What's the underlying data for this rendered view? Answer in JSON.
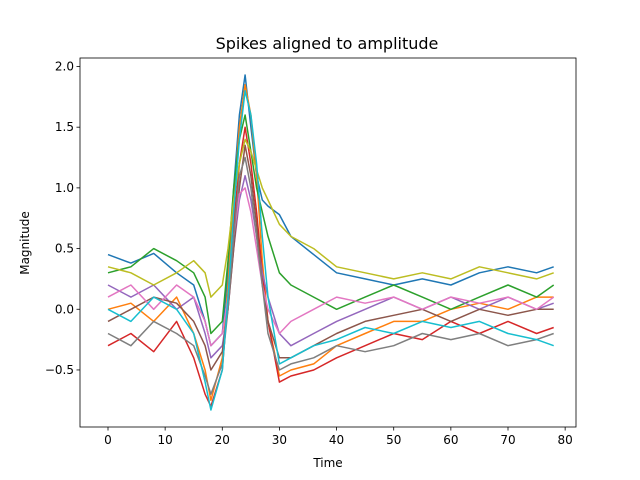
{
  "chart_data": {
    "type": "line",
    "title": "Spikes aligned to amplitude",
    "xlabel": "Time",
    "ylabel": "Magnitude",
    "xlim": [
      -4.9,
      81.9
    ],
    "ylim": [
      -0.97,
      2.07
    ],
    "xticks": [
      0,
      10,
      20,
      30,
      40,
      50,
      60,
      70,
      80
    ],
    "xtick_labels": [
      "0",
      "10",
      "20",
      "30",
      "40",
      "50",
      "60",
      "70",
      "80"
    ],
    "yticks": [
      -0.5,
      0.0,
      0.5,
      1.0,
      1.5,
      2.0
    ],
    "ytick_labels": [
      "−0.5",
      "0.0",
      "0.5",
      "1.0",
      "1.5",
      "2.0"
    ],
    "grid": false,
    "legend": "none",
    "colors": [
      "#1f77b4",
      "#ff7f0e",
      "#2ca02c",
      "#d62728",
      "#9467bd",
      "#8c564b",
      "#e377c2",
      "#7f7f7f",
      "#bcbd22",
      "#17becf"
    ],
    "series": [
      {
        "x": [
          0,
          4,
          8,
          12,
          15,
          17,
          18,
          20,
          21,
          22,
          23,
          24,
          25,
          26,
          27,
          28,
          30,
          32,
          36,
          40,
          45,
          50,
          55,
          60,
          65,
          70,
          75,
          78
        ],
        "values": [
          0.45,
          0.38,
          0.46,
          0.3,
          0.2,
          -0.1,
          -0.3,
          -0.2,
          0.3,
          1.0,
          1.6,
          1.93,
          1.5,
          1.1,
          0.9,
          0.85,
          0.78,
          0.6,
          0.45,
          0.3,
          0.25,
          0.2,
          0.25,
          0.2,
          0.3,
          0.35,
          0.3,
          0.35
        ]
      },
      {
        "x": [
          0,
          4,
          8,
          12,
          15,
          17,
          18,
          20,
          21,
          22,
          23,
          24,
          25,
          26,
          27,
          28,
          30,
          32,
          36,
          40,
          45,
          50,
          55,
          60,
          65,
          70,
          75,
          78
        ],
        "values": [
          0.0,
          0.05,
          -0.1,
          0.1,
          -0.2,
          -0.5,
          -0.75,
          -0.4,
          0.2,
          0.9,
          1.5,
          1.85,
          1.6,
          1.1,
          0.4,
          -0.1,
          -0.55,
          -0.5,
          -0.45,
          -0.3,
          -0.2,
          -0.1,
          -0.1,
          0.0,
          0.05,
          0.0,
          0.1,
          0.1
        ]
      },
      {
        "x": [
          0,
          4,
          8,
          12,
          15,
          17,
          18,
          20,
          21,
          22,
          23,
          24,
          25,
          26,
          27,
          28,
          30,
          32,
          36,
          40,
          45,
          50,
          55,
          60,
          65,
          70,
          75,
          78
        ],
        "values": [
          0.3,
          0.35,
          0.5,
          0.4,
          0.3,
          0.1,
          -0.2,
          -0.1,
          0.4,
          1.0,
          1.4,
          1.6,
          1.3,
          1.0,
          0.8,
          0.6,
          0.3,
          0.2,
          0.1,
          0.0,
          0.1,
          0.2,
          0.1,
          0.0,
          0.1,
          0.2,
          0.1,
          0.2
        ]
      },
      {
        "x": [
          0,
          4,
          8,
          12,
          15,
          17,
          18,
          20,
          21,
          22,
          23,
          24,
          25,
          26,
          27,
          28,
          30,
          32,
          36,
          40,
          45,
          50,
          55,
          60,
          65,
          70,
          75,
          78
        ],
        "values": [
          -0.3,
          -0.2,
          -0.35,
          -0.1,
          -0.4,
          -0.7,
          -0.8,
          -0.5,
          0.1,
          0.7,
          1.2,
          1.5,
          1.2,
          0.8,
          0.3,
          -0.1,
          -0.6,
          -0.55,
          -0.5,
          -0.4,
          -0.3,
          -0.2,
          -0.25,
          -0.1,
          -0.2,
          -0.1,
          -0.2,
          -0.15
        ]
      },
      {
        "x": [
          0,
          4,
          8,
          12,
          15,
          17,
          18,
          20,
          21,
          22,
          23,
          24,
          25,
          26,
          27,
          28,
          30,
          32,
          36,
          40,
          45,
          50,
          55,
          60,
          65,
          70,
          75,
          78
        ],
        "values": [
          0.2,
          0.1,
          0.2,
          0.0,
          0.1,
          -0.2,
          -0.4,
          -0.3,
          0.0,
          0.5,
          0.9,
          1.1,
          0.9,
          0.6,
          0.3,
          0.1,
          -0.2,
          -0.3,
          -0.2,
          -0.1,
          0.0,
          0.1,
          0.0,
          0.1,
          0.0,
          0.1,
          0.0,
          0.05
        ]
      },
      {
        "x": [
          0,
          4,
          8,
          12,
          15,
          17,
          18,
          20,
          21,
          22,
          23,
          24,
          25,
          26,
          27,
          28,
          30,
          32,
          36,
          40,
          45,
          50,
          55,
          60,
          65,
          70,
          75,
          78
        ],
        "values": [
          -0.1,
          0.0,
          0.1,
          0.05,
          -0.1,
          -0.3,
          -0.5,
          -0.35,
          0.0,
          0.5,
          1.0,
          1.35,
          1.1,
          0.7,
          0.2,
          -0.1,
          -0.4,
          -0.4,
          -0.3,
          -0.2,
          -0.1,
          -0.05,
          0.0,
          -0.1,
          0.0,
          -0.05,
          0.0,
          0.0
        ]
      },
      {
        "x": [
          0,
          4,
          8,
          12,
          15,
          17,
          18,
          20,
          21,
          22,
          23,
          24,
          25,
          26,
          27,
          28,
          30,
          32,
          36,
          40,
          45,
          50,
          55,
          60,
          65,
          70,
          75,
          78
        ],
        "values": [
          0.1,
          0.2,
          0.0,
          0.2,
          0.1,
          -0.1,
          -0.3,
          -0.2,
          0.1,
          0.6,
          0.95,
          1.0,
          0.8,
          0.5,
          0.2,
          0.0,
          -0.2,
          -0.1,
          0.0,
          0.1,
          0.05,
          0.1,
          0.0,
          0.1,
          0.05,
          0.1,
          0.0,
          0.1
        ]
      },
      {
        "x": [
          0,
          4,
          8,
          12,
          15,
          17,
          18,
          20,
          21,
          22,
          23,
          24,
          25,
          26,
          27,
          28,
          30,
          32,
          36,
          40,
          45,
          50,
          55,
          60,
          65,
          70,
          75,
          78
        ],
        "values": [
          -0.2,
          -0.3,
          -0.1,
          -0.2,
          -0.3,
          -0.55,
          -0.7,
          -0.45,
          0.0,
          0.6,
          1.1,
          1.25,
          1.0,
          0.6,
          0.2,
          -0.2,
          -0.5,
          -0.45,
          -0.4,
          -0.3,
          -0.35,
          -0.3,
          -0.2,
          -0.25,
          -0.2,
          -0.3,
          -0.25,
          -0.2
        ]
      },
      {
        "x": [
          0,
          4,
          8,
          12,
          15,
          17,
          18,
          20,
          21,
          22,
          23,
          24,
          25,
          26,
          27,
          28,
          30,
          32,
          36,
          40,
          45,
          50,
          55,
          60,
          65,
          70,
          75,
          78
        ],
        "values": [
          0.35,
          0.3,
          0.2,
          0.3,
          0.4,
          0.3,
          0.1,
          0.2,
          0.5,
          0.9,
          1.2,
          1.4,
          1.3,
          1.15,
          1.0,
          0.9,
          0.7,
          0.6,
          0.5,
          0.35,
          0.3,
          0.25,
          0.3,
          0.25,
          0.35,
          0.3,
          0.25,
          0.3
        ]
      },
      {
        "x": [
          0,
          4,
          8,
          12,
          15,
          17,
          18,
          20,
          21,
          22,
          23,
          24,
          25,
          26,
          27,
          28,
          30,
          32,
          36,
          40,
          45,
          50,
          55,
          60,
          65,
          70,
          75,
          78
        ],
        "values": [
          0.0,
          -0.1,
          0.1,
          0.0,
          -0.2,
          -0.6,
          -0.83,
          -0.5,
          0.1,
          0.8,
          1.4,
          1.8,
          1.6,
          1.2,
          0.6,
          0.1,
          -0.45,
          -0.4,
          -0.3,
          -0.25,
          -0.15,
          -0.2,
          -0.1,
          -0.15,
          -0.1,
          -0.2,
          -0.25,
          -0.3
        ]
      }
    ]
  }
}
